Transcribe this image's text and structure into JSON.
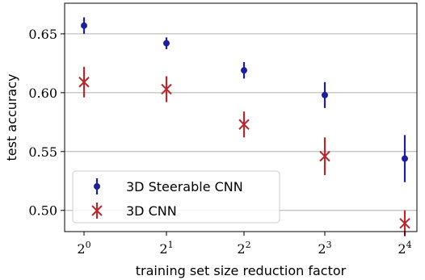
{
  "chart_data": {
    "type": "scatter",
    "title": "",
    "xlabel": "training set size reduction factor",
    "ylabel": "test accuracy",
    "x_tick_labels": [
      {
        "base": "2",
        "exp": "0"
      },
      {
        "base": "2",
        "exp": "1"
      },
      {
        "base": "2",
        "exp": "2"
      },
      {
        "base": "2",
        "exp": "3"
      },
      {
        "base": "2",
        "exp": "4"
      }
    ],
    "x": [
      1,
      2,
      4,
      8,
      16
    ],
    "x_scale": "log2",
    "y_ticks": [
      "0.50",
      "0.55",
      "0.60",
      "0.65"
    ],
    "ylim": [
      0.482,
      0.676
    ],
    "grid": "horizontal",
    "legend_position": "bottom-left",
    "series": [
      {
        "name": "3D Steerable CNN",
        "marker": "circle",
        "color": "#1f1f9a",
        "values": [
          0.657,
          0.642,
          0.619,
          0.598,
          0.544
        ],
        "error": [
          0.007,
          0.005,
          0.007,
          0.011,
          0.02
        ]
      },
      {
        "name": "3D CNN",
        "marker": "x",
        "color": "#b22a2e",
        "values": [
          0.609,
          0.603,
          0.573,
          0.546,
          0.489
        ],
        "error": [
          0.013,
          0.011,
          0.011,
          0.016,
          0.011
        ]
      }
    ]
  }
}
